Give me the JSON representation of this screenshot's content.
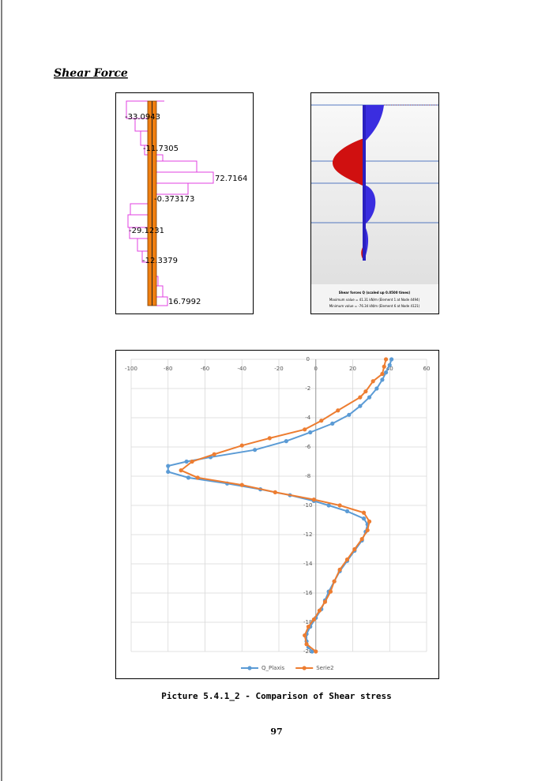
{
  "heading": "Shear Force",
  "left_diagram": {
    "labels": [
      "-33.0943",
      "-11.7305",
      "72.7164",
      "-0.373173",
      "-29.1231",
      "-12.3379",
      "16.7992"
    ]
  },
  "right_diagram": {
    "title": "Shear forces Q (scaled up 0.0500 times)",
    "max_text": "Maximum value = 41.31 kN/m (Element 1 at Node 4494)",
    "min_text": "Minimum value = -76.34 kN/m (Element 6 at Node 4121)"
  },
  "chart_data": {
    "type": "line",
    "xlim": [
      -100,
      60
    ],
    "xticks": [
      -100,
      -80,
      -60,
      -40,
      -20,
      0,
      20,
      40,
      60
    ],
    "ylim": [
      -20,
      0
    ],
    "yticks": [
      0,
      -2,
      -4,
      -6,
      -8,
      -10,
      -12,
      -14,
      -16,
      -18,
      -20
    ],
    "grid": true,
    "legend": "bottom",
    "series": [
      {
        "name": "Q_Plaxis",
        "color": "#5b9bd5",
        "x": [
          41,
          40,
          38,
          36,
          33,
          29,
          24,
          18,
          9,
          -3,
          -16,
          -33,
          -57,
          -70,
          -80,
          -80,
          -69,
          -48,
          -30,
          -14,
          -1,
          7,
          17,
          26,
          28,
          27,
          25,
          21,
          17,
          13,
          10,
          7,
          5,
          3,
          0,
          -3,
          -5,
          -5,
          -4,
          -2
        ],
        "values": [
          0,
          -0.4,
          -0.9,
          -1.4,
          -2,
          -2.6,
          -3.2,
          -3.8,
          -4.4,
          -5,
          -5.6,
          -6.2,
          -6.7,
          -7,
          -7.3,
          -7.7,
          -8.1,
          -8.5,
          -8.9,
          -9.3,
          -9.7,
          -10,
          -10.4,
          -10.9,
          -11.3,
          -11.8,
          -12.4,
          -13.1,
          -13.8,
          -14.5,
          -15.2,
          -15.9,
          -16.5,
          -17.1,
          -17.7,
          -18.3,
          -18.8,
          -19.3,
          -19.7,
          -20
        ]
      },
      {
        "name": "Serie2",
        "color": "#ed7d31",
        "x": [
          38,
          37,
          36,
          31,
          27,
          24,
          12,
          3,
          -6,
          -25,
          -40,
          -55,
          -67,
          -73,
          -64,
          -40,
          -22,
          -1,
          13,
          26,
          29,
          28,
          25,
          21,
          17,
          13,
          10,
          8,
          5,
          2,
          -1,
          -4,
          -6,
          -5,
          0
        ],
        "values": [
          0,
          -0.5,
          -1,
          -1.5,
          -2.2,
          -2.6,
          -3.5,
          -4.2,
          -4.8,
          -5.4,
          -5.9,
          -6.5,
          -7,
          -7.6,
          -8.1,
          -8.6,
          -9.1,
          -9.6,
          -10,
          -10.5,
          -11.1,
          -11.7,
          -12.3,
          -13,
          -13.7,
          -14.4,
          -15.2,
          -15.9,
          -16.6,
          -17.2,
          -17.8,
          -18.3,
          -18.9,
          -19.5,
          -20
        ]
      }
    ]
  },
  "caption": "Picture 5.4.1_2 - Comparison of Shear stress",
  "page_number": "97"
}
